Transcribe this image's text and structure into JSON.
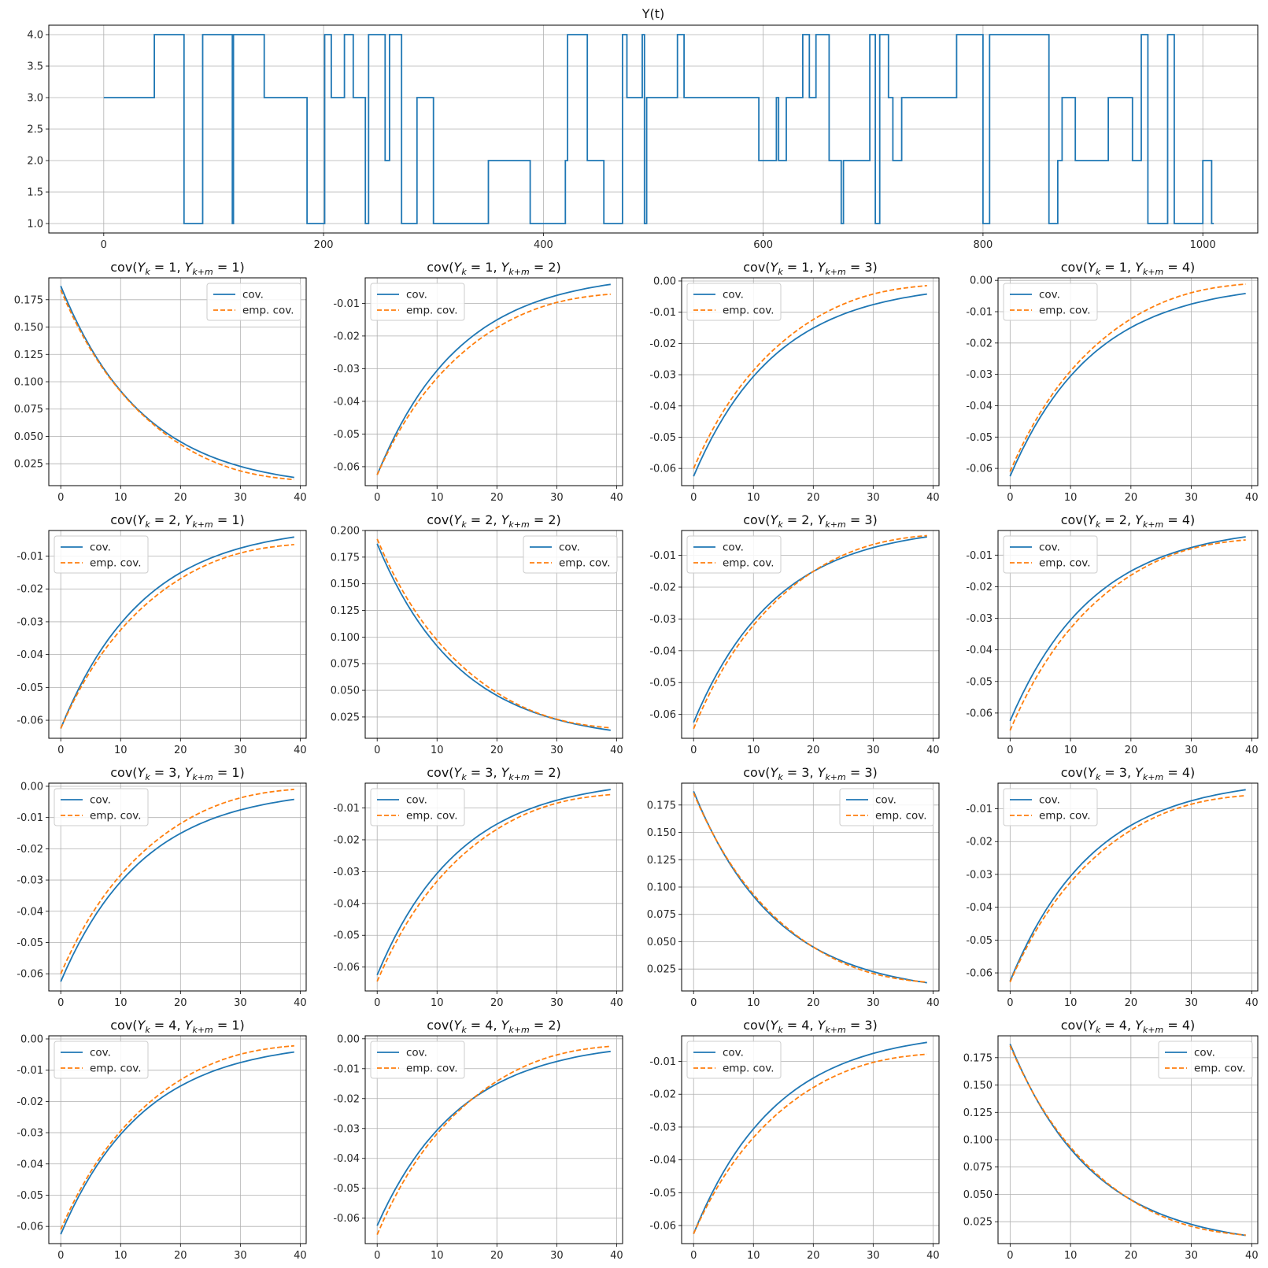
{
  "colors": {
    "cov": "#1f77b4",
    "emp": "#ff7f0e",
    "grid": "#b0b0b0",
    "axis": "#000000",
    "legend_border": "#cccccc"
  },
  "chart_data": {
    "top": {
      "type": "line",
      "title": "Y(t)",
      "xlim": [
        -50,
        1050
      ],
      "ylim": [
        0.85,
        4.15
      ],
      "xticks": [
        0,
        200,
        400,
        600,
        800,
        1000
      ],
      "yticks": [
        "1.0",
        "1.5",
        "2.0",
        "2.5",
        "3.0",
        "3.5",
        "4.0"
      ],
      "grid": true,
      "steps": [
        [
          0,
          3
        ],
        [
          46,
          4
        ],
        [
          73,
          1
        ],
        [
          90,
          4
        ],
        [
          117,
          1
        ],
        [
          118,
          4
        ],
        [
          146,
          3
        ],
        [
          185,
          1
        ],
        [
          201,
          4
        ],
        [
          207,
          3
        ],
        [
          219,
          4
        ],
        [
          227,
          3
        ],
        [
          238,
          1
        ],
        [
          241,
          4
        ],
        [
          256,
          2
        ],
        [
          260,
          4
        ],
        [
          271,
          1
        ],
        [
          285,
          3
        ],
        [
          300,
          1
        ],
        [
          350,
          2
        ],
        [
          388,
          1
        ],
        [
          420,
          2
        ],
        [
          422,
          4
        ],
        [
          440,
          2
        ],
        [
          455,
          1
        ],
        [
          472,
          4
        ],
        [
          476,
          3
        ],
        [
          490,
          4
        ],
        [
          492,
          1
        ],
        [
          494,
          3
        ],
        [
          522,
          4
        ],
        [
          528,
          3
        ],
        [
          596,
          2
        ],
        [
          612,
          3
        ],
        [
          614,
          2
        ],
        [
          621,
          3
        ],
        [
          636,
          4
        ],
        [
          642,
          3
        ],
        [
          648,
          4
        ],
        [
          660,
          2
        ],
        [
          671,
          1
        ],
        [
          673,
          2
        ],
        [
          697,
          4
        ],
        [
          702,
          1
        ],
        [
          706,
          4
        ],
        [
          714,
          3
        ],
        [
          718,
          2
        ],
        [
          726,
          3
        ],
        [
          776,
          4
        ],
        [
          800,
          1
        ],
        [
          806,
          4
        ],
        [
          860,
          1
        ],
        [
          868,
          2
        ],
        [
          872,
          3
        ],
        [
          884,
          2
        ],
        [
          914,
          3
        ],
        [
          936,
          2
        ],
        [
          944,
          4
        ],
        [
          950,
          1
        ],
        [
          968,
          4
        ],
        [
          974,
          1
        ],
        [
          1000,
          2
        ],
        [
          1008,
          1
        ]
      ],
      "x_end": 1010
    },
    "legend_labels": [
      "cov.",
      "emp. cov."
    ],
    "panels": [
      {
        "i": 1,
        "j": 1,
        "title": "cov(Y_k = 1, Y_{k+m} = 1)",
        "ylim": [
          0.005,
          0.195
        ],
        "yticks": [
          "0.025",
          "0.050",
          "0.075",
          "0.100",
          "0.125",
          "0.150",
          "0.175"
        ],
        "xticks": [
          0,
          10,
          20,
          30,
          40
        ],
        "legend": "upper right",
        "cov": {
          "start": 0.1875,
          "end": 0.0125
        },
        "emp": {
          "start": 0.184,
          "end": 0.0105
        }
      },
      {
        "i": 1,
        "j": 2,
        "title": "cov(Y_k = 1, Y_{k+m} = 2)",
        "ylim": [
          -0.0658,
          -0.0022
        ],
        "yticks": [
          "-0.06",
          "-0.05",
          "-0.04",
          "-0.03",
          "-0.02",
          "-0.01"
        ],
        "xticks": [
          0,
          10,
          20,
          30,
          40
        ],
        "legend": "upper left",
        "cov": {
          "start": -0.0625,
          "end": -0.0042
        },
        "emp": {
          "start": -0.0625,
          "end": -0.0072
        }
      },
      {
        "i": 1,
        "j": 3,
        "title": "cov(Y_k = 1, Y_{k+m} = 3)",
        "ylim": [
          -0.0655,
          0.001
        ],
        "yticks": [
          "-0.06",
          "-0.05",
          "-0.04",
          "-0.03",
          "-0.02",
          "-0.01",
          "0.00"
        ],
        "xticks": [
          0,
          10,
          20,
          30,
          40
        ],
        "legend": "upper left",
        "cov": {
          "start": -0.0625,
          "end": -0.0042
        },
        "emp": {
          "start": -0.06,
          "end": -0.0015
        }
      },
      {
        "i": 1,
        "j": 4,
        "title": "cov(Y_k = 1, Y_{k+m} = 4)",
        "ylim": [
          -0.0655,
          0.0008
        ],
        "yticks": [
          "-0.06",
          "-0.05",
          "-0.04",
          "-0.03",
          "-0.02",
          "-0.01",
          "0.00"
        ],
        "xticks": [
          0,
          10,
          20,
          30,
          40
        ],
        "legend": "upper left",
        "cov": {
          "start": -0.0625,
          "end": -0.0042
        },
        "emp": {
          "start": -0.061,
          "end": -0.0012
        }
      },
      {
        "i": 2,
        "j": 1,
        "title": "cov(Y_k = 2, Y_{k+m} = 1)",
        "ylim": [
          -0.0655,
          -0.0022
        ],
        "yticks": [
          "-0.06",
          "-0.05",
          "-0.04",
          "-0.03",
          "-0.02",
          "-0.01"
        ],
        "xticks": [
          0,
          10,
          20,
          30,
          40
        ],
        "legend": "upper left",
        "cov": {
          "start": -0.0625,
          "end": -0.0042
        },
        "emp": {
          "start": -0.0625,
          "end": -0.0065
        }
      },
      {
        "i": 2,
        "j": 2,
        "title": "cov(Y_k = 2, Y_{k+m} = 2)",
        "ylim": [
          0.005,
          0.2
        ],
        "yticks": [
          "0.025",
          "0.050",
          "0.075",
          "0.100",
          "0.125",
          "0.150",
          "0.175",
          "0.200"
        ],
        "xticks": [
          0,
          10,
          20,
          30,
          40
        ],
        "legend": "upper right",
        "cov": {
          "start": 0.1875,
          "end": 0.0125
        },
        "emp": {
          "start": 0.192,
          "end": 0.0148
        }
      },
      {
        "i": 2,
        "j": 3,
        "title": "cov(Y_k = 2, Y_{k+m} = 3)",
        "ylim": [
          -0.0675,
          -0.0022
        ],
        "yticks": [
          "-0.06",
          "-0.05",
          "-0.04",
          "-0.03",
          "-0.02",
          "-0.01"
        ],
        "xticks": [
          0,
          10,
          20,
          30,
          40
        ],
        "legend": "upper left",
        "cov": {
          "start": -0.0625,
          "end": -0.0042
        },
        "emp": {
          "start": -0.0645,
          "end": -0.0038
        }
      },
      {
        "i": 2,
        "j": 4,
        "title": "cov(Y_k = 2, Y_{k+m} = 4)",
        "ylim": [
          -0.068,
          -0.0022
        ],
        "yticks": [
          "-0.06",
          "-0.05",
          "-0.04",
          "-0.03",
          "-0.02",
          "-0.01"
        ],
        "xticks": [
          0,
          10,
          20,
          30,
          40
        ],
        "legend": "upper left",
        "cov": {
          "start": -0.0625,
          "end": -0.0042
        },
        "emp": {
          "start": -0.0655,
          "end": -0.0052
        }
      },
      {
        "i": 3,
        "j": 1,
        "title": "cov(Y_k = 3, Y_{k+m} = 1)",
        "ylim": [
          -0.0655,
          0.001
        ],
        "yticks": [
          "-0.06",
          "-0.05",
          "-0.04",
          "-0.03",
          "-0.02",
          "-0.01",
          "0.00"
        ],
        "xticks": [
          0,
          10,
          20,
          30,
          40
        ],
        "legend": "upper left",
        "cov": {
          "start": -0.0625,
          "end": -0.0042
        },
        "emp": {
          "start": -0.06,
          "end": -0.001
        }
      },
      {
        "i": 3,
        "j": 2,
        "title": "cov(Y_k = 3, Y_{k+m} = 2)",
        "ylim": [
          -0.0675,
          -0.0022
        ],
        "yticks": [
          "-0.06",
          "-0.05",
          "-0.04",
          "-0.03",
          "-0.02",
          "-0.01"
        ],
        "xticks": [
          0,
          10,
          20,
          30,
          40
        ],
        "legend": "upper left",
        "cov": {
          "start": -0.0625,
          "end": -0.0042
        },
        "emp": {
          "start": -0.0645,
          "end": -0.0058
        }
      },
      {
        "i": 3,
        "j": 3,
        "title": "cov(Y_k = 3, Y_{k+m} = 3)",
        "ylim": [
          0.005,
          0.195
        ],
        "yticks": [
          "0.025",
          "0.050",
          "0.075",
          "0.100",
          "0.125",
          "0.150",
          "0.175"
        ],
        "xticks": [
          0,
          10,
          20,
          30,
          40
        ],
        "legend": "upper right",
        "cov": {
          "start": 0.1875,
          "end": 0.0125
        },
        "emp": {
          "start": 0.186,
          "end": 0.013
        }
      },
      {
        "i": 3,
        "j": 4,
        "title": "cov(Y_k = 3, Y_{k+m} = 4)",
        "ylim": [
          -0.0655,
          -0.0022
        ],
        "yticks": [
          "-0.06",
          "-0.05",
          "-0.04",
          "-0.03",
          "-0.02",
          "-0.01"
        ],
        "xticks": [
          0,
          10,
          20,
          30,
          40
        ],
        "legend": "upper left",
        "cov": {
          "start": -0.0625,
          "end": -0.0042
        },
        "emp": {
          "start": -0.0628,
          "end": -0.006
        }
      },
      {
        "i": 4,
        "j": 1,
        "title": "cov(Y_k = 4, Y_{k+m} = 1)",
        "ylim": [
          -0.0655,
          0.001
        ],
        "yticks": [
          "-0.06",
          "-0.05",
          "-0.04",
          "-0.03",
          "-0.02",
          "-0.01",
          "0.00"
        ],
        "xticks": [
          0,
          10,
          20,
          30,
          40
        ],
        "legend": "upper left",
        "cov": {
          "start": -0.0625,
          "end": -0.0042
        },
        "emp": {
          "start": -0.061,
          "end": -0.0022
        }
      },
      {
        "i": 4,
        "j": 2,
        "title": "cov(Y_k = 4, Y_{k+m} = 2)",
        "ylim": [
          -0.0685,
          0.001
        ],
        "yticks": [
          "-0.06",
          "-0.05",
          "-0.04",
          "-0.03",
          "-0.02",
          "-0.01",
          "0.00"
        ],
        "xticks": [
          0,
          10,
          20,
          30,
          40
        ],
        "legend": "upper left",
        "cov": {
          "start": -0.0625,
          "end": -0.0042
        },
        "emp": {
          "start": -0.0655,
          "end": -0.0025
        }
      },
      {
        "i": 4,
        "j": 3,
        "title": "cov(Y_k = 4, Y_{k+m} = 3)",
        "ylim": [
          -0.0655,
          -0.0022
        ],
        "yticks": [
          "-0.06",
          "-0.05",
          "-0.04",
          "-0.03",
          "-0.02",
          "-0.01"
        ],
        "xticks": [
          0,
          10,
          20,
          30,
          40
        ],
        "legend": "upper left",
        "cov": {
          "start": -0.0625,
          "end": -0.0042
        },
        "emp": {
          "start": -0.0625,
          "end": -0.0078
        }
      },
      {
        "i": 4,
        "j": 4,
        "title": "cov(Y_k = 4, Y_{k+m} = 4)",
        "ylim": [
          0.005,
          0.195
        ],
        "yticks": [
          "0.025",
          "0.050",
          "0.075",
          "0.100",
          "0.125",
          "0.150",
          "0.175"
        ],
        "xticks": [
          0,
          10,
          20,
          30,
          40
        ],
        "legend": "upper right",
        "cov": {
          "start": 0.1875,
          "end": 0.0125
        },
        "emp": {
          "start": 0.186,
          "end": 0.0128
        }
      }
    ]
  }
}
